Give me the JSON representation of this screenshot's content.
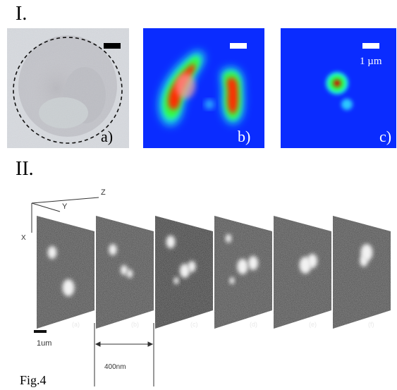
{
  "section_one": {
    "label": "I."
  },
  "section_two": {
    "label": "II."
  },
  "panels_top": [
    {
      "label": "a)"
    },
    {
      "label": "b)"
    },
    {
      "label": "c)",
      "scale_text": "1 µm"
    }
  ],
  "stack": {
    "axes": {
      "z": "Z",
      "y": "Y",
      "x": "X"
    },
    "slice_labels": [
      "(a)",
      "(b)",
      "(c)",
      "(d)",
      "(e)",
      "(f)"
    ],
    "scale_bar": "1um",
    "spacing": "400nm"
  },
  "caption": "Fig.4",
  "colors": {
    "jet_low": "#0a2cff",
    "jet_mid": "#00ff40",
    "jet_high": "#e00000"
  }
}
